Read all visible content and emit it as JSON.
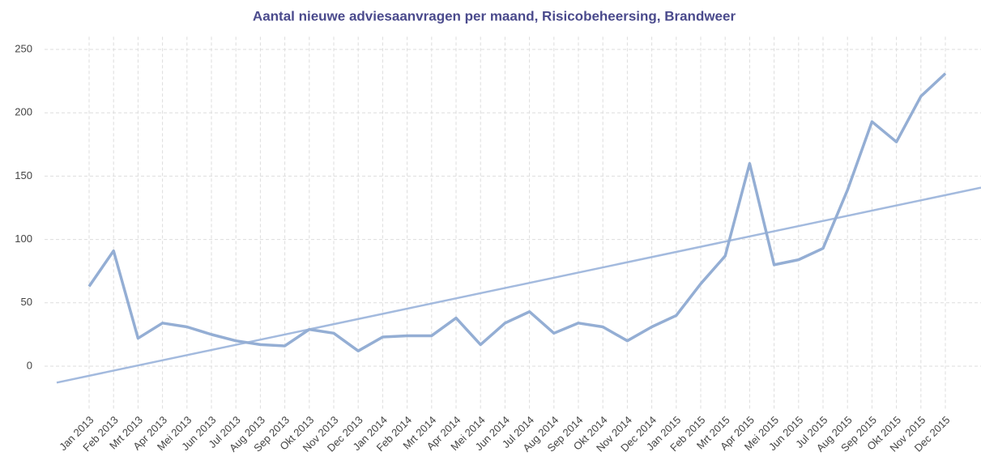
{
  "chart_data": {
    "type": "line",
    "title": "Aantal nieuwe adviesaanvragen per maand, Risicobeheersing, Brandweer",
    "categories": [
      "Jan 2013",
      "Feb 2013",
      "Mrt 2013",
      "Apr 2013",
      "Mei 2013",
      "Jun 2013",
      "Jul 2013",
      "Aug 2013",
      "Sep 2013",
      "Okt 2013",
      "Nov 2013",
      "Dec 2013",
      "Jan 2014",
      "Feb 2014",
      "Mrt 2014",
      "Apr 2014",
      "Mei 2014",
      "Jun 2014",
      "Jul 2014",
      "Aug 2014",
      "Sep 2014",
      "Okt 2014",
      "Nov 2014",
      "Dec 2014",
      "Jan 2015",
      "Feb 2015",
      "Mrt 2015",
      "Apr 2015",
      "Mei 2015",
      "Jun 2015",
      "Jul 2015",
      "Aug 2015",
      "Sep 2015",
      "Okt 2015",
      "Nov 2015",
      "Dec 2015"
    ],
    "values": [
      63,
      91,
      22,
      34,
      31,
      25,
      20,
      17,
      16,
      29,
      26,
      12,
      23,
      24,
      24,
      38,
      17,
      34,
      43,
      26,
      34,
      31,
      20,
      31,
      40,
      65,
      87,
      160,
      80,
      84,
      93,
      139,
      193,
      177,
      213,
      231
    ],
    "color": "#94aed4",
    "trend": {
      "color": "#a3bade",
      "values": [
        -7.6,
        135
      ]
    },
    "ylim": [
      -35,
      260
    ],
    "yticks": [
      0,
      50,
      100,
      150,
      200,
      250
    ],
    "grid": true
  }
}
